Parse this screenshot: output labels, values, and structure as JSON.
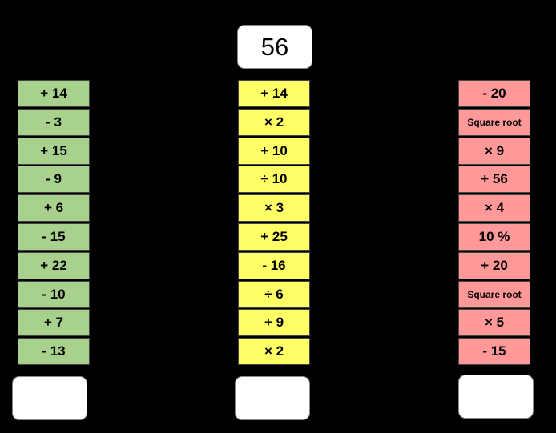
{
  "start_number": "56",
  "columns": [
    {
      "color": "#a9d18e",
      "steps": [
        "+ 14",
        "- 3",
        "+ 15",
        "- 9",
        "+ 6",
        "- 15",
        "+ 22",
        "- 10",
        "+ 7",
        "- 13"
      ]
    },
    {
      "color": "#ffff66",
      "steps": [
        "+ 14",
        "× 2",
        "+ 10",
        "÷ 10",
        "× 3",
        "+ 25",
        "- 16",
        "÷ 6",
        "+ 9",
        "× 2"
      ]
    },
    {
      "color": "#ff9999",
      "steps": [
        "- 20",
        "Square root",
        "× 9",
        "+ 56",
        "× 4",
        "10 %",
        "+ 20",
        "Square root",
        "× 5",
        "- 15"
      ]
    }
  ],
  "answers": [
    "",
    "",
    ""
  ]
}
